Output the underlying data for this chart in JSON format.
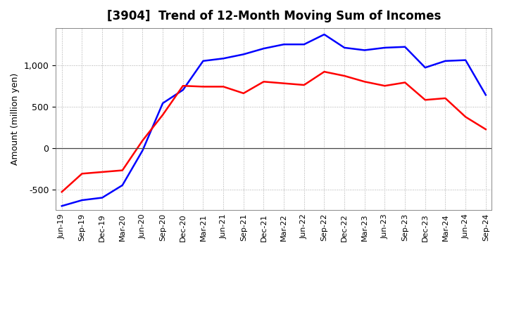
{
  "title": "[3904]  Trend of 12-Month Moving Sum of Incomes",
  "ylabel": "Amount (million yen)",
  "x_labels": [
    "Jun-19",
    "Sep-19",
    "Dec-19",
    "Mar-20",
    "Jun-20",
    "Sep-20",
    "Dec-20",
    "Mar-21",
    "Jun-21",
    "Sep-21",
    "Dec-21",
    "Mar-22",
    "Jun-22",
    "Sep-22",
    "Dec-22",
    "Mar-23",
    "Jun-23",
    "Sep-23",
    "Dec-23",
    "Mar-24",
    "Jun-24",
    "Sep-24"
  ],
  "ordinary_income": [
    -700,
    -630,
    -600,
    -450,
    -30,
    540,
    700,
    1050,
    1080,
    1130,
    1200,
    1250,
    1250,
    1370,
    1210,
    1180,
    1210,
    1220,
    970,
    1050,
    1060,
    640
  ],
  "net_income": [
    -530,
    -310,
    -290,
    -270,
    90,
    400,
    750,
    740,
    740,
    660,
    800,
    780,
    760,
    920,
    870,
    800,
    750,
    790,
    580,
    600,
    375,
    225
  ],
  "ordinary_color": "#0000FF",
  "net_color": "#FF0000",
  "ylim": [
    -750,
    1450
  ],
  "yticks": [
    -500,
    0,
    500,
    1000
  ],
  "background_color": "#FFFFFF",
  "grid_color": "#AAAAAA",
  "line_width": 1.8,
  "title_fontsize": 12,
  "ylabel_fontsize": 9,
  "tick_fontsize": 8
}
